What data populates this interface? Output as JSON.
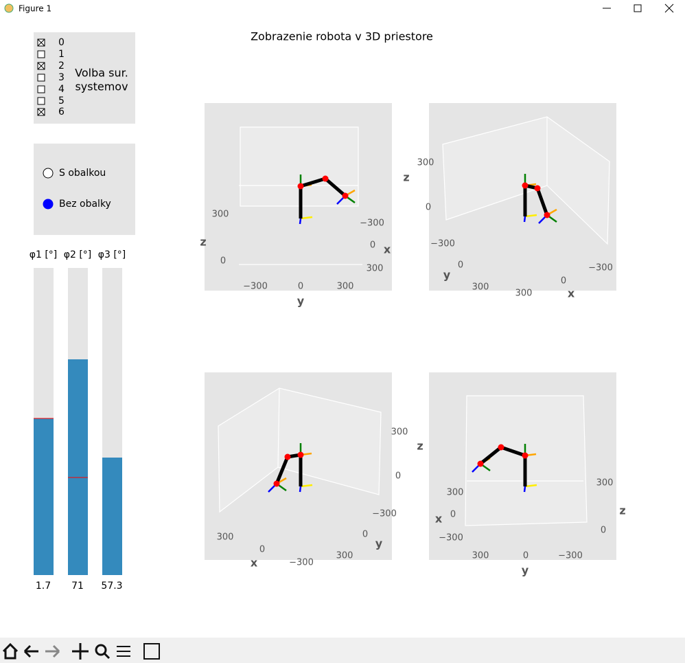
{
  "window": {
    "title": "Figure 1"
  },
  "figure_title": "Zobrazenie robota v 3D priestore",
  "checkboxes": {
    "title": [
      "Volba sur.",
      "systemov"
    ],
    "items": [
      {
        "label": "0",
        "checked": true
      },
      {
        "label": "1",
        "checked": false
      },
      {
        "label": "2",
        "checked": true
      },
      {
        "label": "3",
        "checked": false
      },
      {
        "label": "4",
        "checked": false
      },
      {
        "label": "5",
        "checked": false
      },
      {
        "label": "6",
        "checked": true
      }
    ]
  },
  "radio": {
    "options": [
      {
        "label": "S obalkou",
        "selected": false
      },
      {
        "label": "Bez obalky",
        "selected": true
      }
    ]
  },
  "sliders": [
    {
      "label": "φ1 [°]",
      "value": 1.7
    },
    {
      "label": "φ2 [°]",
      "value": 71
    },
    {
      "label": "φ3 [°]",
      "value": 57.3
    }
  ],
  "plots": [
    {
      "labels": [
        "z",
        "y",
        "x"
      ],
      "ticks": [
        "300",
        "0",
        "−300",
        "0",
        "300",
        "−300",
        "0",
        "300"
      ]
    },
    {
      "labels": [
        "z",
        "y",
        "x"
      ],
      "ticks": [
        "300",
        "0",
        "−300",
        "0",
        "300",
        "300",
        "0",
        "−300"
      ]
    },
    {
      "labels": [
        "x",
        "y"
      ],
      "ticks": [
        "300",
        "0",
        "−300",
        "300",
        "0",
        "−300",
        "0",
        "300"
      ]
    },
    {
      "labels": [
        "z",
        "x",
        "y",
        "z"
      ],
      "ticks": [
        "300",
        "0",
        "−300",
        "300",
        "0",
        "−300",
        "300",
        "0"
      ]
    }
  ]
}
